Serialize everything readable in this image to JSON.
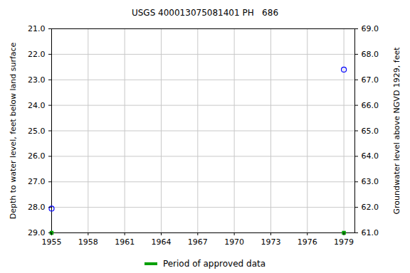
{
  "chart_data": {
    "type": "scatter",
    "title": "USGS 400013075081401 PH   686",
    "x": [
      1955,
      1979
    ],
    "xlim": [
      1955,
      1979.9
    ],
    "xticks": [
      1955,
      1958,
      1961,
      1964,
      1967,
      1970,
      1973,
      1976,
      1979
    ],
    "ylabel": "Depth to water level, feet below land surface",
    "ylim": [
      29,
      21
    ],
    "yticks": [
      {
        "value": 21,
        "label": "21.0"
      },
      {
        "value": 22,
        "label": "22.0"
      },
      {
        "value": 23,
        "label": "23.0"
      },
      {
        "value": 24,
        "label": "24.0"
      },
      {
        "value": 25,
        "label": "25.0"
      },
      {
        "value": 26,
        "label": "26.0"
      },
      {
        "value": 27,
        "label": "27.0"
      },
      {
        "value": 28,
        "label": "28.0"
      },
      {
        "value": 29,
        "label": "29.0"
      }
    ],
    "y2label": "Groundwater level above NGVD 1929, feet",
    "y2lim": [
      61,
      69
    ],
    "y2ticks": [
      {
        "value": 61,
        "label": "61.0"
      },
      {
        "value": 62,
        "label": "62.0"
      },
      {
        "value": 63,
        "label": "63.0"
      },
      {
        "value": 64,
        "label": "64.0"
      },
      {
        "value": 65,
        "label": "65.0"
      },
      {
        "value": 66,
        "label": "66.0"
      },
      {
        "value": 67,
        "label": "67.0"
      },
      {
        "value": 68,
        "label": "68.0"
      },
      {
        "value": 69,
        "label": "69.0"
      }
    ],
    "grid": true,
    "series": [
      {
        "name": null,
        "color": "#0000ff",
        "marker": "circle",
        "values": [
          28.05,
          22.6
        ]
      },
      {
        "name": "Period of approved data",
        "color": "#00a000",
        "marker": "square",
        "values": [
          29,
          29
        ]
      }
    ]
  }
}
